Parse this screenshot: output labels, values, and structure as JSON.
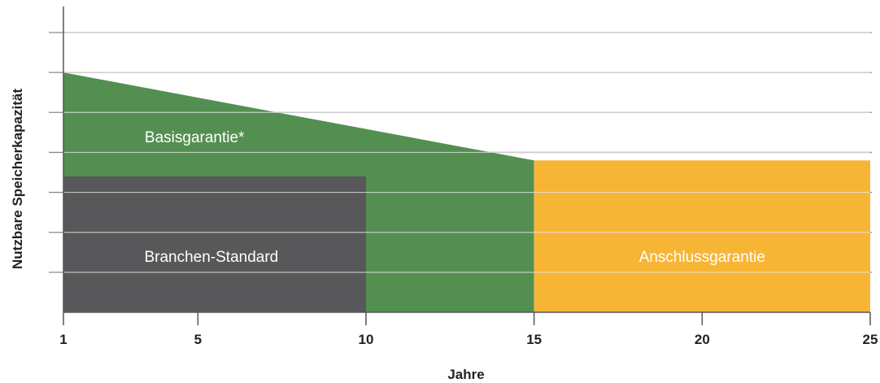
{
  "chart_data": {
    "type": "area",
    "title": "",
    "xlabel": "Jahre",
    "ylabel": "Nutzbare Speicherkapazität",
    "x_ticks": [
      1,
      5,
      10,
      15,
      20,
      25
    ],
    "xlim": [
      1,
      25
    ],
    "ylim": [
      0,
      7
    ],
    "y_gridlines": [
      1,
      2,
      3,
      4,
      5,
      6,
      7
    ],
    "y_tick_labels_shown": false,
    "grid": true,
    "regions": [
      {
        "name": "Basisgarantie*",
        "color": "#548f52",
        "points": [
          [
            1,
            6
          ],
          [
            15,
            3.8
          ],
          [
            15,
            0
          ],
          [
            1,
            0
          ]
        ]
      },
      {
        "name": "Branchen-Standard",
        "color": "#58585a",
        "points": [
          [
            1,
            3.4
          ],
          [
            10,
            3.4
          ],
          [
            10,
            0
          ],
          [
            1,
            0
          ]
        ]
      },
      {
        "name": "Anschlussgarantie",
        "color": "#f7b535",
        "points": [
          [
            15,
            3.8
          ],
          [
            25,
            3.8
          ],
          [
            25,
            0
          ],
          [
            15,
            0
          ]
        ]
      }
    ],
    "labels": [
      {
        "text": "Basisgarantie*",
        "x": 4.9,
        "y": 4.4
      },
      {
        "text": "Branchen-Standard",
        "x": 5.4,
        "y": 1.4
      },
      {
        "text": "Anschlussgarantie",
        "x": 20.0,
        "y": 1.4
      }
    ]
  }
}
